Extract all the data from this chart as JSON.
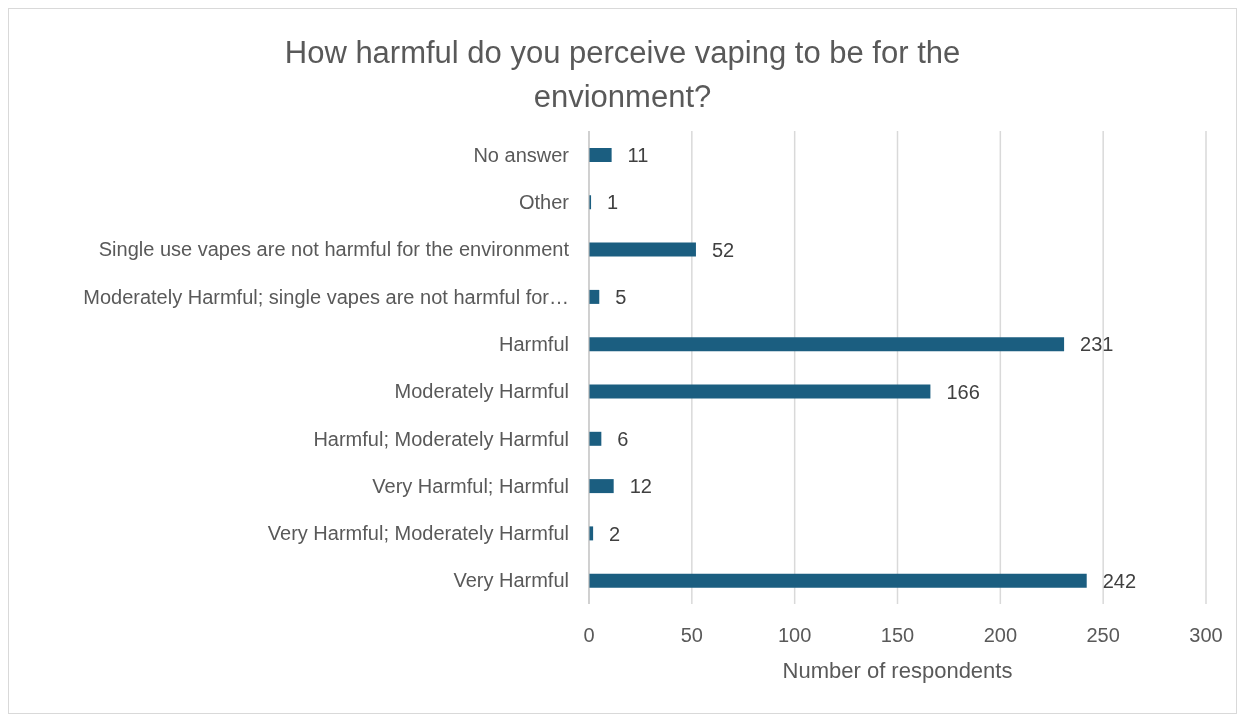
{
  "chart_data": {
    "type": "bar",
    "orientation": "horizontal",
    "title": "How harmful do you perceive vaping to be for the envionment?",
    "xlabel": "Number of respondents",
    "categories": [
      "No answer",
      "Other",
      "Single use vapes are not harmful for the environment",
      "Moderately Harmful; single vapes are not harmful for…",
      "Harmful",
      "Moderately Harmful",
      "Harmful; Moderately Harmful",
      "Very Harmful; Harmful",
      "Very Harmful; Moderately Harmful",
      "Very Harmful"
    ],
    "values": [
      11,
      1,
      52,
      5,
      231,
      166,
      6,
      12,
      2,
      242
    ],
    "color": "#1b5e80",
    "xlim": [
      0,
      300
    ],
    "xticks": [
      0,
      50,
      100,
      150,
      200,
      250,
      300
    ],
    "grid": "x",
    "data_labels": true
  }
}
